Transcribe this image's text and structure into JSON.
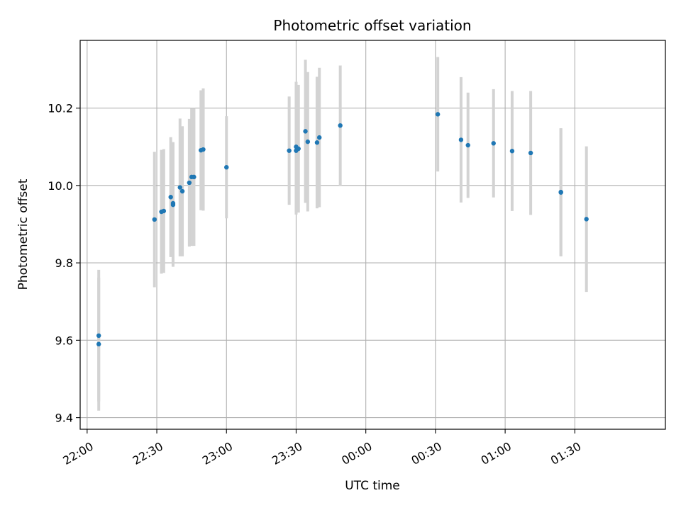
{
  "chart_data": {
    "type": "scatter",
    "title": "Photometric offset variation",
    "xlabel": "UTC time",
    "ylabel": "Photometric offset",
    "grid": true,
    "x_ticks": [
      "22:00",
      "22:30",
      "23:00",
      "23:30",
      "00:00",
      "00:30",
      "01:00",
      "01:30"
    ],
    "y_ticks": [
      "9.4",
      "9.6",
      "9.8",
      "10.0",
      "10.2"
    ],
    "xlim": [
      "21:57",
      "02:09"
    ],
    "ylim": [
      9.37,
      10.375
    ],
    "colors": {
      "points": "#1f77b4",
      "error_bars": "#d3d3d3",
      "grid": "#b0b0b0"
    },
    "points": [
      {
        "x": "22:05",
        "y": 9.612,
        "yerr": 0.17
      },
      {
        "x": "22:05",
        "y": 9.59,
        "yerr": 0.172
      },
      {
        "x": "22:29",
        "y": 9.912,
        "yerr": 0.175
      },
      {
        "x": "22:32",
        "y": 9.932,
        "yerr": 0.16
      },
      {
        "x": "22:33",
        "y": 9.934,
        "yerr": 0.16
      },
      {
        "x": "22:36",
        "y": 9.97,
        "yerr": 0.155
      },
      {
        "x": "22:37",
        "y": 9.95,
        "yerr": 0.16
      },
      {
        "x": "22:37",
        "y": 9.954,
        "yerr": 0.158
      },
      {
        "x": "22:40",
        "y": 9.995,
        "yerr": 0.178
      },
      {
        "x": "22:41",
        "y": 9.985,
        "yerr": 0.168
      },
      {
        "x": "22:44",
        "y": 10.007,
        "yerr": 0.165
      },
      {
        "x": "22:45",
        "y": 10.022,
        "yerr": 0.178
      },
      {
        "x": "22:46",
        "y": 10.022,
        "yerr": 0.178
      },
      {
        "x": "22:49",
        "y": 10.091,
        "yerr": 0.155
      },
      {
        "x": "22:50",
        "y": 10.093,
        "yerr": 0.158
      },
      {
        "x": "23:00",
        "y": 10.047,
        "yerr": 0.132
      },
      {
        "x": "23:27",
        "y": 10.09,
        "yerr": 0.14
      },
      {
        "x": "23:30",
        "y": 10.1,
        "yerr": 0.168
      },
      {
        "x": "23:30",
        "y": 10.09,
        "yerr": 0.165
      },
      {
        "x": "23:31",
        "y": 10.095,
        "yerr": 0.165
      },
      {
        "x": "23:34",
        "y": 10.14,
        "yerr": 0.185
      },
      {
        "x": "23:35",
        "y": 10.113,
        "yerr": 0.18
      },
      {
        "x": "23:39",
        "y": 10.111,
        "yerr": 0.17
      },
      {
        "x": "23:40",
        "y": 10.124,
        "yerr": 0.18
      },
      {
        "x": "23:49",
        "y": 10.155,
        "yerr": 0.155
      },
      {
        "x": "00:31",
        "y": 10.184,
        "yerr": 0.148
      },
      {
        "x": "00:41",
        "y": 10.118,
        "yerr": 0.162
      },
      {
        "x": "00:44",
        "y": 10.104,
        "yerr": 0.136
      },
      {
        "x": "00:55",
        "y": 10.109,
        "yerr": 0.14
      },
      {
        "x": "01:03",
        "y": 10.089,
        "yerr": 0.155
      },
      {
        "x": "01:11",
        "y": 10.084,
        "yerr": 0.16
      },
      {
        "x": "01:24",
        "y": 9.982,
        "yerr": 0.165
      },
      {
        "x": "01:24",
        "y": 9.983,
        "yerr": 0.165
      },
      {
        "x": "01:35",
        "y": 9.913,
        "yerr": 0.188
      }
    ]
  }
}
